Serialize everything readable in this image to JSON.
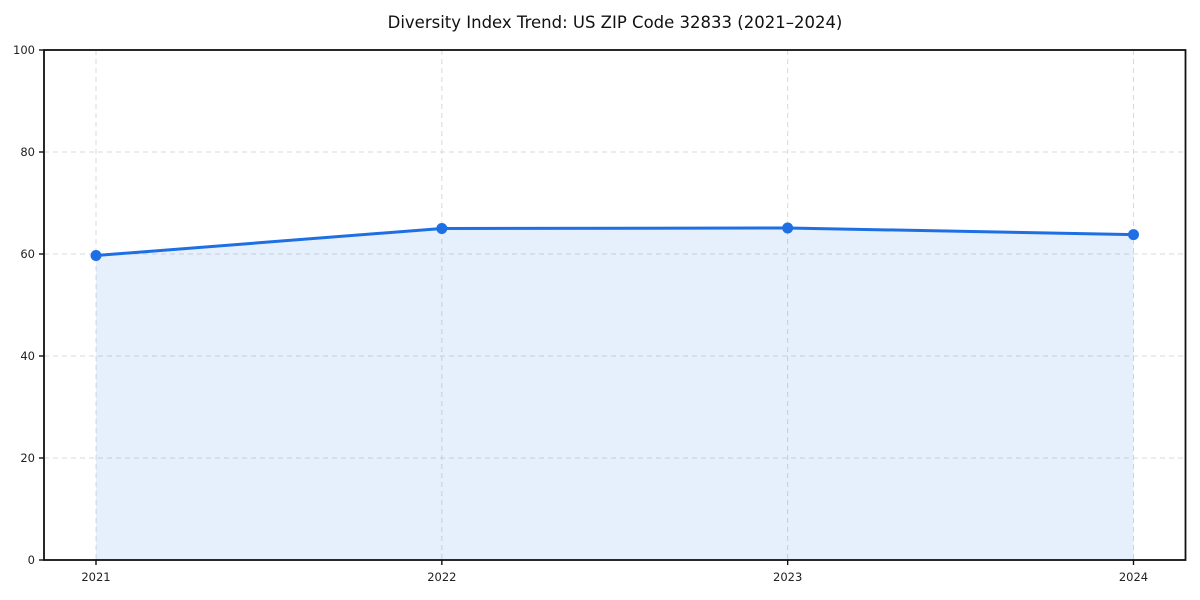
{
  "colors": {
    "line": "#1d6fe3",
    "fill": "#1d6fe3",
    "fill_opacity": 0.11,
    "grid": "#d9d9d9",
    "spine": "#111111",
    "tick_text": "#222222",
    "title_text": "#111111",
    "background": "#ffffff"
  },
  "chart_data": {
    "type": "line",
    "title": "Diversity Index Trend: US ZIP Code 32833 (2021–2024)",
    "x": [
      "2021",
      "2022",
      "2023",
      "2024"
    ],
    "series": [
      {
        "name": "Diversity Index",
        "values": [
          59.7,
          65.0,
          65.1,
          63.8
        ]
      }
    ],
    "xlabel": "",
    "ylabel": "",
    "ylim": [
      0,
      100
    ],
    "yticks": [
      0,
      20,
      40,
      60,
      80,
      100
    ],
    "grid": true,
    "grid_style": "dashed",
    "legend_position": "none",
    "marker": "circle",
    "area_fill": true,
    "area_fill_range": [
      "2021",
      "2024"
    ]
  }
}
